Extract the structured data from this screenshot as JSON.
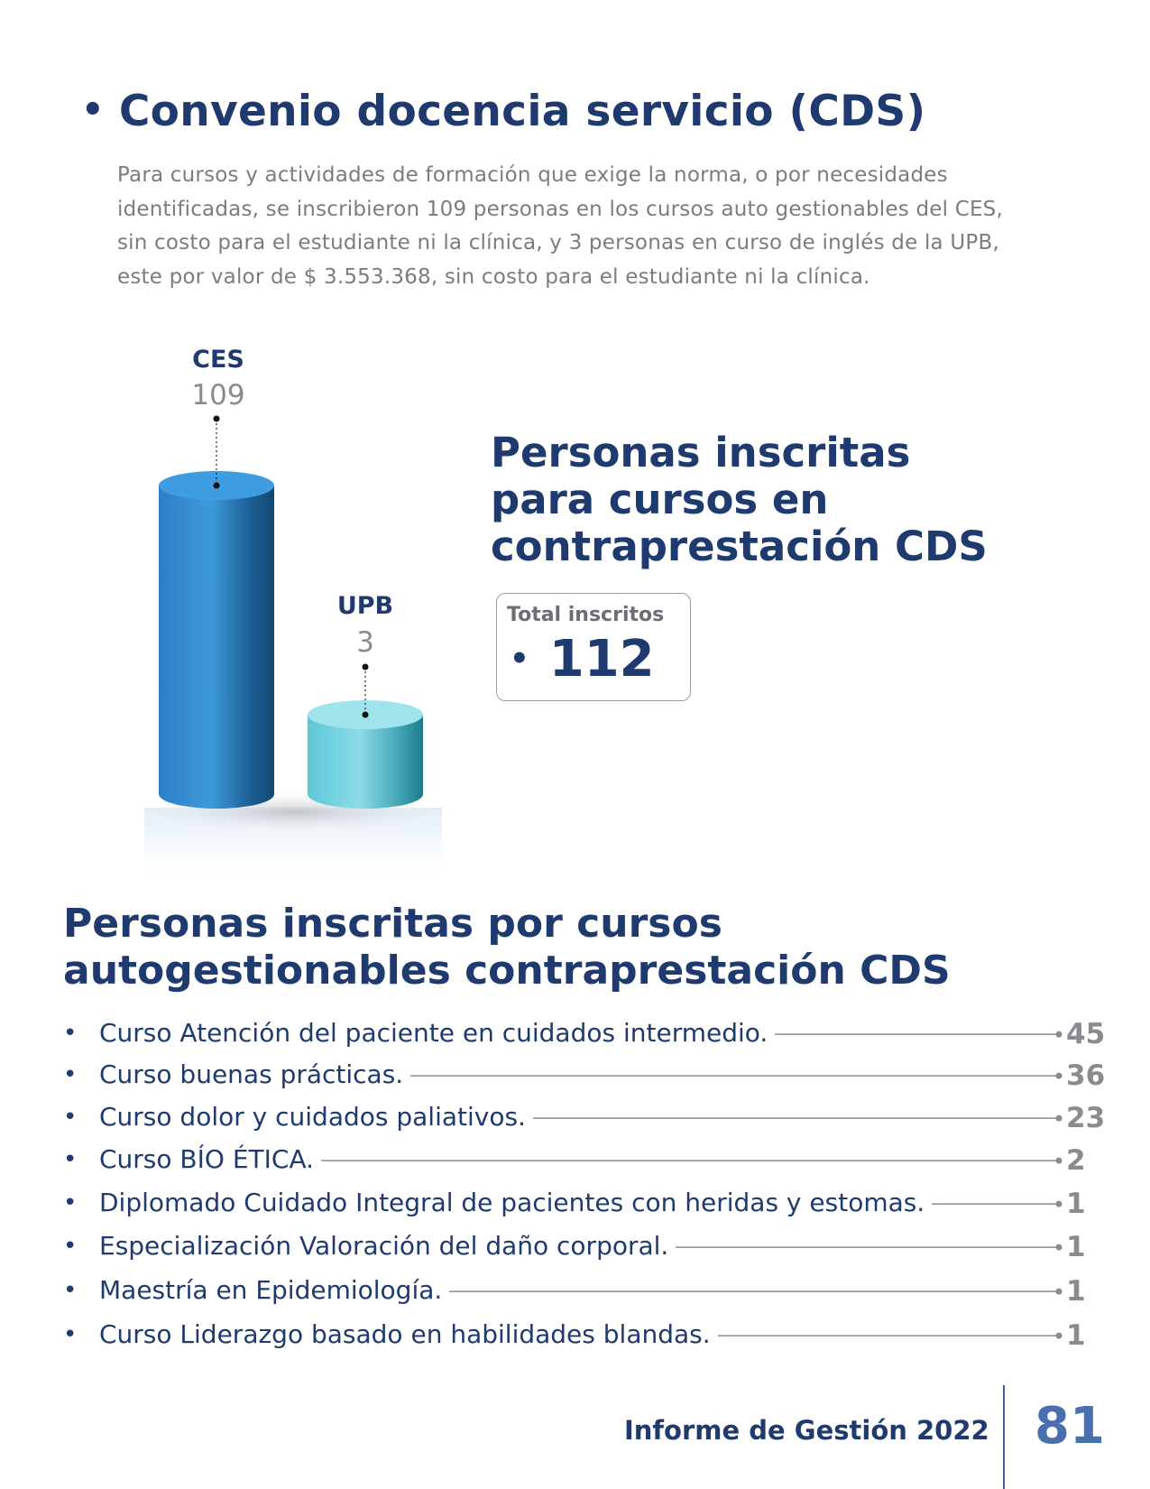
{
  "section": {
    "bullet": "•",
    "title": "Convenio docencia servicio (CDS)",
    "intro": "Para cursos y actividades de formación que exige la norma, o por necesidades identificadas, se inscribieron 109 personas en los cursos auto gestionables del CES, sin costo para el estudiante ni la clínica, y 3 personas en curso de inglés de la UPB, este por valor de $ 3.553.368, sin costo para el estudiante ni la clínica."
  },
  "chart_data": {
    "type": "bar",
    "categories": [
      "CES",
      "UPB"
    ],
    "values": [
      109,
      3
    ],
    "title": "Personas inscritas para cursos en contraprestación CDS",
    "title_lines": [
      "Personas inscritas",
      "para cursos en",
      "contraprestación CDS"
    ],
    "colors": [
      "#2f86c9",
      "#5cc3d3"
    ]
  },
  "total": {
    "label": "Total inscritos",
    "bullet": "•",
    "value": "112"
  },
  "courses": {
    "title_lines": [
      "Personas inscritas por cursos",
      "autogestionables contraprestación CDS"
    ],
    "bullet": "•",
    "items": [
      {
        "name": "Curso Atención del paciente en cuidados intermedio.",
        "value": "45"
      },
      {
        "name": "Curso buenas prácticas.",
        "value": "36"
      },
      {
        "name": "Curso dolor y cuidados paliativos.",
        "value": "23"
      },
      {
        "name": "Curso BÍO ÉTICA.",
        "value": "2"
      },
      {
        "name": "Diplomado Cuidado Integral de pacientes con heridas y estomas.",
        "value": "1"
      },
      {
        "name": "Especialización Valoración del daño corporal.",
        "value": "1"
      },
      {
        "name": "Maestría en Epidemiología.",
        "value": "1"
      },
      {
        "name": "Curso Liderazgo basado en habilidades blandas.",
        "value": "1"
      }
    ]
  },
  "footer": {
    "report": "Informe de Gestión 2022",
    "page": "81"
  }
}
